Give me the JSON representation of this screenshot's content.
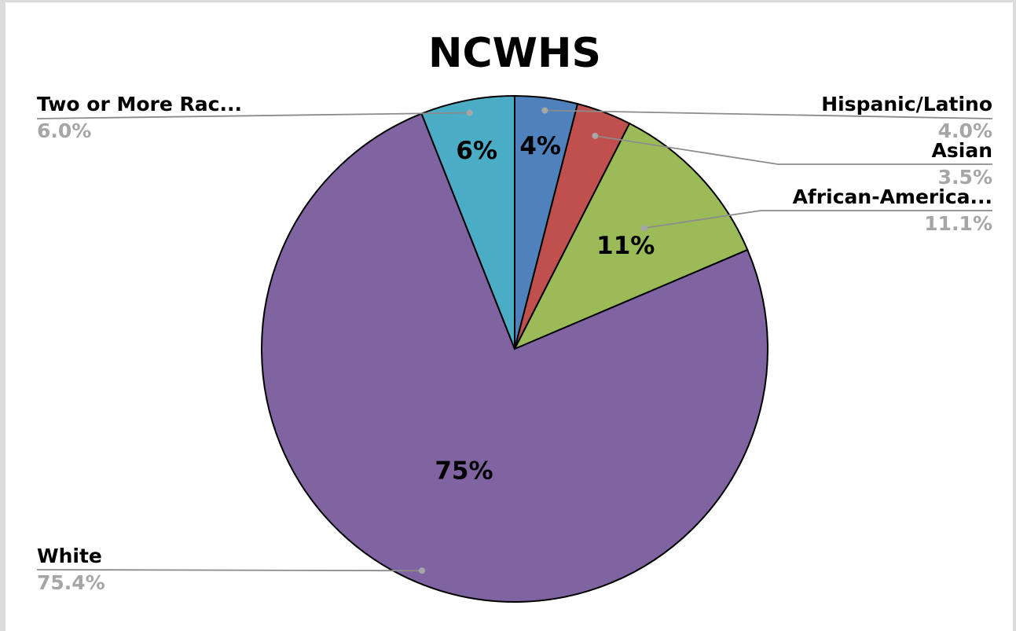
{
  "chart_data": {
    "type": "pie",
    "title": "NCWHS",
    "categories": [
      "Hispanic/Latino",
      "Asian",
      "African-America...",
      "White",
      "Two or More Rac..."
    ],
    "values": [
      4.0,
      3.5,
      11.1,
      75.4,
      6.0
    ],
    "value_labels": [
      "4.0%",
      "3.5%",
      "11.1%",
      "75.4%",
      "6.0%"
    ],
    "slice_labels": [
      "4%",
      "",
      "11%",
      "75%",
      "6%"
    ],
    "colors": [
      "#4f81bd",
      "#c0504d",
      "#9bbb59",
      "#8064a2",
      "#4bacc6"
    ],
    "start_angle": "12 o'clock",
    "direction": "clockwise",
    "legend": "none"
  }
}
